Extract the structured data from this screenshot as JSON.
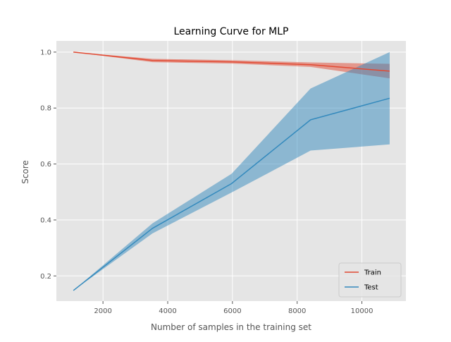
{
  "chart_data": {
    "type": "line",
    "title": "Learning Curve for MLP",
    "xlabel": "Number of samples in the training set",
    "ylabel": "Score",
    "xlim": [
      560,
      11360
    ],
    "ylim": [
      0.11,
      1.04
    ],
    "xticks": [
      2000,
      4000,
      6000,
      8000,
      10000
    ],
    "yticks": [
      0.2,
      0.4,
      0.6,
      0.8,
      1.0
    ],
    "ytick_labels": [
      "0.2",
      "0.4",
      "0.6",
      "0.8",
      "1.0"
    ],
    "xtick_labels": [
      "2000",
      "4000",
      "6000",
      "8000",
      "10000"
    ],
    "grid": true,
    "legend_position": "lower-right",
    "x": [
      1086,
      3529,
      5972,
      8415,
      10858
    ],
    "series": [
      {
        "name": "Train",
        "color": "#E24A33",
        "values": [
          1.0,
          0.97,
          0.965,
          0.955,
          0.932
        ],
        "upper": [
          1.0,
          0.976,
          0.971,
          0.963,
          0.958
        ],
        "lower": [
          1.0,
          0.964,
          0.959,
          0.947,
          0.906
        ]
      },
      {
        "name": "Test",
        "color": "#348ABD",
        "values": [
          0.148,
          0.37,
          0.53,
          0.758,
          0.835
        ],
        "upper": [
          0.148,
          0.388,
          0.565,
          0.87,
          1.0
        ],
        "lower": [
          0.148,
          0.352,
          0.498,
          0.648,
          0.67
        ]
      }
    ]
  }
}
